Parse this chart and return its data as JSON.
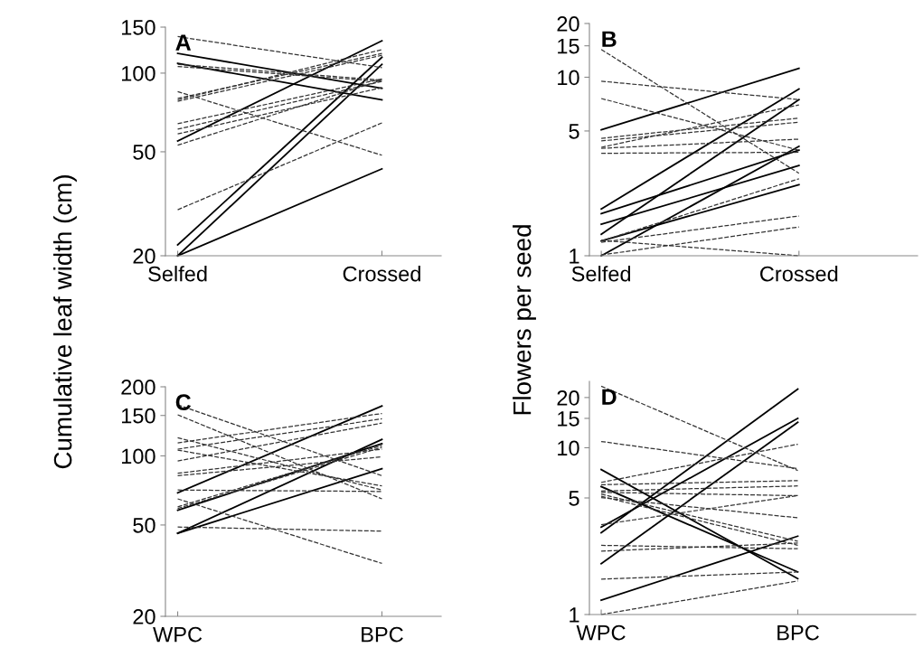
{
  "chart_data": [
    {
      "type": "line",
      "title": "A",
      "ylabel": "Cumulative leaf width (cm)",
      "categories": [
        "Selfed",
        "Crossed"
      ],
      "log": "y",
      "ylim": [
        20,
        150
      ],
      "yticks": [
        20,
        50,
        100,
        150
      ],
      "series": [
        {
          "color": "#000000",
          "line_style": "solid",
          "values": [
            119,
            87.5
          ]
        },
        {
          "color": "#000000",
          "line_style": "solid",
          "values": [
            109,
            79
          ]
        },
        {
          "color": "#000000",
          "line_style": "solid",
          "values": [
            55,
            133
          ]
        },
        {
          "color": "#000000",
          "line_style": "solid",
          "values": [
            22,
            115
          ]
        },
        {
          "color": "#000000",
          "line_style": "solid",
          "values": [
            20,
            108
          ]
        },
        {
          "color": "#000000",
          "line_style": "solid",
          "values": [
            20,
            43
          ]
        },
        {
          "color": "#333333",
          "line_style": "dashed",
          "values": [
            138,
            105
          ]
        },
        {
          "color": "#333333",
          "line_style": "dashed",
          "values": [
            108,
            94
          ]
        },
        {
          "color": "#333333",
          "line_style": "dashed",
          "values": [
            106,
            93
          ]
        },
        {
          "color": "#333333",
          "line_style": "dashed",
          "values": [
            85,
            48.5
          ]
        },
        {
          "color": "#333333",
          "line_style": "dashed",
          "values": [
            80,
            119
          ]
        },
        {
          "color": "#333333",
          "line_style": "dashed",
          "values": [
            79,
            123
          ]
        },
        {
          "color": "#333333",
          "line_style": "dashed",
          "values": [
            78,
            117
          ]
        },
        {
          "color": "#333333",
          "line_style": "dashed",
          "values": [
            64,
            95
          ]
        },
        {
          "color": "#333333",
          "line_style": "dashed",
          "values": [
            61,
            93
          ]
        },
        {
          "color": "#333333",
          "line_style": "dashed",
          "values": [
            58.5,
            88
          ]
        },
        {
          "color": "#333333",
          "line_style": "dashed",
          "values": [
            53,
            94
          ]
        },
        {
          "color": "#333333",
          "line_style": "dashed",
          "values": [
            30,
            64.5
          ]
        }
      ]
    },
    {
      "type": "line",
      "title": "B",
      "ylabel": "Flowers per seed",
      "categories": [
        "Selfed",
        "Crossed"
      ],
      "log": "y",
      "ylim": [
        1,
        20
      ],
      "yticks": [
        1,
        5,
        10,
        15,
        20
      ],
      "series": [
        {
          "color": "#000000",
          "line_style": "solid",
          "values": [
            5.07,
            11.2
          ]
        },
        {
          "color": "#000000",
          "line_style": "solid",
          "values": [
            1.83,
            8.6
          ]
        },
        {
          "color": "#000000",
          "line_style": "solid",
          "values": [
            1.32,
            7.5
          ]
        },
        {
          "color": "#000000",
          "line_style": "solid",
          "values": [
            1.0,
            4.1
          ]
        },
        {
          "color": "#000000",
          "line_style": "solid",
          "values": [
            1.72,
            3.9
          ]
        },
        {
          "color": "#000000",
          "line_style": "solid",
          "values": [
            1.5,
            3.2
          ]
        },
        {
          "color": "#000000",
          "line_style": "solid",
          "values": [
            1.21,
            2.5
          ]
        },
        {
          "color": "#333333",
          "line_style": "dashed",
          "values": [
            14.3,
            2.9
          ]
        },
        {
          "color": "#333333",
          "line_style": "dashed",
          "values": [
            9.5,
            7.5
          ]
        },
        {
          "color": "#333333",
          "line_style": "dashed",
          "values": [
            7.6,
            3.9
          ]
        },
        {
          "color": "#333333",
          "line_style": "dashed",
          "values": [
            4.55,
            5.9
          ]
        },
        {
          "color": "#333333",
          "line_style": "dashed",
          "values": [
            4.4,
            5.6
          ]
        },
        {
          "color": "#333333",
          "line_style": "dashed",
          "values": [
            4.05,
            7.0
          ]
        },
        {
          "color": "#333333",
          "line_style": "dashed",
          "values": [
            4.0,
            4.5
          ]
        },
        {
          "color": "#333333",
          "line_style": "dashed",
          "values": [
            3.75,
            3.8
          ]
        },
        {
          "color": "#333333",
          "line_style": "dashed",
          "values": [
            1.21,
            2.7
          ]
        },
        {
          "color": "#333333",
          "line_style": "dashed",
          "values": [
            1.19,
            1.67
          ]
        },
        {
          "color": "#333333",
          "line_style": "dashed",
          "values": [
            1.01,
            1.45
          ]
        },
        {
          "color": "#333333",
          "line_style": "dashed",
          "values": [
            1.22,
            1.0
          ]
        }
      ]
    },
    {
      "type": "line",
      "title": "C",
      "categories": [
        "WPC",
        "BPC"
      ],
      "log": "y",
      "ylim": [
        20,
        200
      ],
      "yticks": [
        20,
        50,
        100,
        150,
        200
      ],
      "series": [
        {
          "color": "#000000",
          "line_style": "solid",
          "values": [
            69,
            165
          ]
        },
        {
          "color": "#000000",
          "line_style": "solid",
          "values": [
            58,
            113
          ]
        },
        {
          "color": "#000000",
          "line_style": "solid",
          "values": [
            46,
            118
          ]
        },
        {
          "color": "#000000",
          "line_style": "solid",
          "values": [
            46,
            88
          ]
        },
        {
          "color": "#333333",
          "line_style": "dashed",
          "values": [
            167,
            82
          ]
        },
        {
          "color": "#333333",
          "line_style": "dashed",
          "values": [
            151,
            65
          ]
        },
        {
          "color": "#333333",
          "line_style": "dashed",
          "values": [
            120,
            71
          ]
        },
        {
          "color": "#333333",
          "line_style": "dashed",
          "values": [
            114,
            153
          ]
        },
        {
          "color": "#333333",
          "line_style": "dashed",
          "values": [
            107,
            145
          ]
        },
        {
          "color": "#333333",
          "line_style": "dashed",
          "values": [
            106,
            74
          ]
        },
        {
          "color": "#333333",
          "line_style": "dashed",
          "values": [
            95,
            139
          ]
        },
        {
          "color": "#333333",
          "line_style": "dashed",
          "values": [
            84,
            107
          ]
        },
        {
          "color": "#333333",
          "line_style": "dashed",
          "values": [
            82,
            99
          ]
        },
        {
          "color": "#333333",
          "line_style": "dashed",
          "values": [
            71,
            70
          ]
        },
        {
          "color": "#333333",
          "line_style": "dashed",
          "values": [
            65,
            34
          ]
        },
        {
          "color": "#333333",
          "line_style": "dashed",
          "values": [
            60,
            111
          ]
        },
        {
          "color": "#333333",
          "line_style": "dashed",
          "values": [
            59,
            109
          ]
        },
        {
          "color": "#333333",
          "line_style": "dashed",
          "values": [
            49,
            47
          ]
        }
      ]
    },
    {
      "type": "line",
      "title": "D",
      "categories": [
        "WPC",
        "BPC"
      ],
      "log": "y",
      "ylim": [
        1,
        25
      ],
      "yticks": [
        1,
        5,
        10,
        15,
        20
      ],
      "series": [
        {
          "color": "#000000",
          "line_style": "solid",
          "values": [
            7.4,
            1.64
          ]
        },
        {
          "color": "#000000",
          "line_style": "solid",
          "values": [
            5.85,
            1.8
          ]
        },
        {
          "color": "#000000",
          "line_style": "solid",
          "values": [
            3.34,
            15.0
          ]
        },
        {
          "color": "#000000",
          "line_style": "solid",
          "values": [
            3.09,
            22.5
          ]
        },
        {
          "color": "#000000",
          "line_style": "solid",
          "values": [
            2.02,
            14.2
          ]
        },
        {
          "color": "#000000",
          "line_style": "solid",
          "values": [
            1.22,
            2.95
          ]
        },
        {
          "color": "#333333",
          "line_style": "dashed",
          "values": [
            23.4,
            7.3
          ]
        },
        {
          "color": "#333333",
          "line_style": "dashed",
          "values": [
            10.9,
            7.5
          ]
        },
        {
          "color": "#333333",
          "line_style": "dashed",
          "values": [
            6.2,
            10.5
          ]
        },
        {
          "color": "#333333",
          "line_style": "dashed",
          "values": [
            6.0,
            6.35
          ]
        },
        {
          "color": "#333333",
          "line_style": "dashed",
          "values": [
            5.5,
            5.9
          ]
        },
        {
          "color": "#333333",
          "line_style": "dashed",
          "values": [
            5.4,
            5.16
          ]
        },
        {
          "color": "#333333",
          "line_style": "dashed",
          "values": [
            5.27,
            2.75
          ]
        },
        {
          "color": "#333333",
          "line_style": "dashed",
          "values": [
            5.12,
            2.6
          ]
        },
        {
          "color": "#333333",
          "line_style": "dashed",
          "values": [
            5.02,
            3.8
          ]
        },
        {
          "color": "#333333",
          "line_style": "dashed",
          "values": [
            3.46,
            5.16
          ]
        },
        {
          "color": "#333333",
          "line_style": "dashed",
          "values": [
            2.6,
            2.48
          ]
        },
        {
          "color": "#333333",
          "line_style": "dashed",
          "values": [
            2.4,
            2.68
          ]
        },
        {
          "color": "#333333",
          "line_style": "dashed",
          "values": [
            1.63,
            1.8
          ]
        },
        {
          "color": "#333333",
          "line_style": "dashed",
          "values": [
            1.0,
            1.59
          ]
        }
      ]
    }
  ]
}
